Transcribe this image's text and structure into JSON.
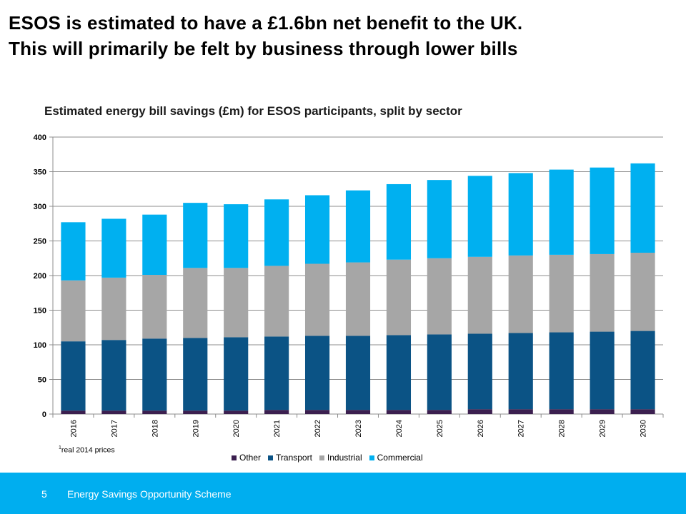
{
  "slide": {
    "title_line1": "ESOS is estimated to have a £1.6bn net benefit to the UK.",
    "title_line2": "This will primarily be felt by business through lower bills",
    "footnote_mark": "1",
    "footnote_text": "real 2014 prices"
  },
  "footer": {
    "page_number": "5",
    "text": "Energy Savings Opportunity Scheme",
    "color": "#00aeef"
  },
  "chart_data": {
    "type": "bar",
    "stacked": true,
    "title": "Estimated energy bill savings (£m) for ESOS participants, split by sector",
    "xlabel": "",
    "ylabel": "",
    "ylim": [
      0,
      400
    ],
    "yticks": [
      0,
      50,
      100,
      150,
      200,
      250,
      300,
      350,
      400
    ],
    "grid": true,
    "legend_position": "bottom",
    "categories": [
      "2016",
      "2017",
      "2018",
      "2019",
      "2020",
      "2021",
      "2022",
      "2023",
      "2024",
      "2025",
      "2026",
      "2027",
      "2028",
      "2029",
      "2030"
    ],
    "series": [
      {
        "name": "Other",
        "color": "#3b1f4f",
        "values": [
          5,
          5,
          5,
          5,
          5,
          6,
          6,
          6,
          6,
          6,
          7,
          7,
          7,
          7,
          7
        ]
      },
      {
        "name": "Transport",
        "color": "#0b5385",
        "values": [
          100,
          102,
          104,
          105,
          106,
          106,
          107,
          107,
          108,
          109,
          109,
          110,
          111,
          112,
          113
        ]
      },
      {
        "name": "Industrial",
        "color": "#a6a6a6",
        "values": [
          88,
          90,
          92,
          101,
          100,
          102,
          104,
          106,
          109,
          110,
          111,
          112,
          112,
          112,
          113
        ]
      },
      {
        "name": "Commercial",
        "color": "#00b0f0",
        "values": [
          84,
          85,
          87,
          94,
          92,
          96,
          99,
          104,
          109,
          113,
          117,
          119,
          123,
          125,
          129
        ]
      }
    ]
  }
}
